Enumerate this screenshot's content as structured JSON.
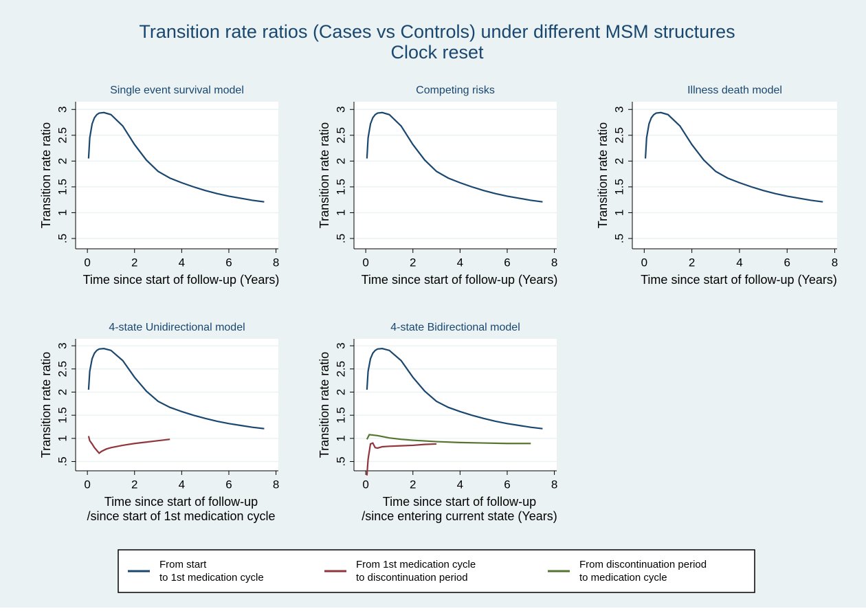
{
  "title": [
    "Transition rate ratios (Cases vs Controls) under different MSM structures",
    "Clock reset"
  ],
  "chart_data": [
    {
      "type": "line",
      "title": "Single event survival model",
      "xlabel": "Time since start of follow-up (Years)",
      "ylabel": "Transition rate ratio",
      "xlim": [
        -0.5,
        8.1
      ],
      "ylim": [
        0.3,
        3.15
      ],
      "xticks": [
        0,
        2,
        4,
        6,
        8
      ],
      "yticks": [
        {
          "value": 0.5,
          "label": ".5"
        },
        1,
        1.5,
        2,
        2.5,
        3
      ],
      "grid": true,
      "series": [
        {
          "color": "#1a476f",
          "x": [
            0.05,
            0.1,
            0.2,
            0.3,
            0.4,
            0.5,
            0.7,
            1,
            1.5,
            2,
            2.5,
            3,
            3.5,
            4,
            4.5,
            5,
            5.5,
            6,
            6.5,
            7,
            7.5
          ],
          "values": [
            2.05,
            2.45,
            2.72,
            2.84,
            2.9,
            2.93,
            2.94,
            2.9,
            2.68,
            2.32,
            2.02,
            1.8,
            1.67,
            1.58,
            1.5,
            1.43,
            1.37,
            1.32,
            1.28,
            1.24,
            1.21
          ]
        }
      ]
    },
    {
      "type": "line",
      "title": "Competing risks",
      "xlabel": "Time since start of follow-up (Years)",
      "ylabel": "Transition rate ratio",
      "xlim": [
        -0.5,
        8.1
      ],
      "ylim": [
        0.3,
        3.15
      ],
      "xticks": [
        0,
        2,
        4,
        6,
        8
      ],
      "yticks": [
        {
          "value": 0.5,
          "label": ".5"
        },
        1,
        1.5,
        2,
        2.5,
        3
      ],
      "grid": true,
      "series": [
        {
          "color": "#1a476f",
          "x": [
            0.05,
            0.1,
            0.2,
            0.3,
            0.4,
            0.5,
            0.7,
            1,
            1.5,
            2,
            2.5,
            3,
            3.5,
            4,
            4.5,
            5,
            5.5,
            6,
            6.5,
            7,
            7.5
          ],
          "values": [
            2.05,
            2.45,
            2.72,
            2.84,
            2.9,
            2.93,
            2.94,
            2.9,
            2.68,
            2.32,
            2.02,
            1.8,
            1.67,
            1.58,
            1.5,
            1.43,
            1.37,
            1.32,
            1.28,
            1.24,
            1.21
          ]
        }
      ]
    },
    {
      "type": "line",
      "title": "Illness death model",
      "xlabel": "Time since start of follow-up (Years)",
      "ylabel": "Transition rate ratio",
      "xlim": [
        -0.5,
        8.1
      ],
      "ylim": [
        0.3,
        3.15
      ],
      "xticks": [
        0,
        2,
        4,
        6,
        8
      ],
      "yticks": [
        {
          "value": 0.5,
          "label": ".5"
        },
        1,
        1.5,
        2,
        2.5,
        3
      ],
      "grid": true,
      "series": [
        {
          "color": "#1a476f",
          "x": [
            0.05,
            0.1,
            0.2,
            0.3,
            0.4,
            0.5,
            0.7,
            1,
            1.5,
            2,
            2.5,
            3,
            3.5,
            4,
            4.5,
            5,
            5.5,
            6,
            6.5,
            7,
            7.5
          ],
          "values": [
            2.05,
            2.45,
            2.72,
            2.84,
            2.9,
            2.93,
            2.94,
            2.9,
            2.68,
            2.32,
            2.02,
            1.8,
            1.67,
            1.58,
            1.5,
            1.43,
            1.37,
            1.32,
            1.28,
            1.24,
            1.21
          ]
        }
      ]
    },
    {
      "type": "line",
      "title": "4-state Unidirectional model",
      "xlabel": [
        "Time since start of follow-up",
        "/since start of 1st medication cycle"
      ],
      "ylabel": "Transition rate ratio",
      "xlim": [
        -0.5,
        8.1
      ],
      "ylim": [
        0.3,
        3.15
      ],
      "xticks": [
        0,
        2,
        4,
        6,
        8
      ],
      "yticks": [
        {
          "value": 0.5,
          "label": ".5"
        },
        1,
        1.5,
        2,
        2.5,
        3
      ],
      "grid": true,
      "series": [
        {
          "color": "#1a476f",
          "x": [
            0.05,
            0.1,
            0.2,
            0.3,
            0.4,
            0.5,
            0.7,
            1,
            1.5,
            2,
            2.5,
            3,
            3.5,
            4,
            4.5,
            5,
            5.5,
            6,
            6.5,
            7,
            7.5
          ],
          "values": [
            2.05,
            2.45,
            2.72,
            2.84,
            2.9,
            2.93,
            2.94,
            2.9,
            2.68,
            2.32,
            2.02,
            1.8,
            1.67,
            1.58,
            1.5,
            1.43,
            1.37,
            1.32,
            1.28,
            1.24,
            1.21
          ]
        },
        {
          "color": "#90353b",
          "x": [
            0.05,
            0.1,
            0.2,
            0.3,
            0.4,
            0.5,
            0.6,
            0.8,
            1,
            1.5,
            2,
            2.5,
            3,
            3.5
          ],
          "values": [
            1.05,
            0.95,
            0.88,
            0.8,
            0.74,
            0.68,
            0.72,
            0.77,
            0.8,
            0.85,
            0.89,
            0.92,
            0.95,
            0.98
          ]
        }
      ]
    },
    {
      "type": "line",
      "title": "4-state Bidirectional model",
      "xlabel": [
        "Time since start of follow-up",
        "/since entering current state (Years)"
      ],
      "ylabel": "Transition rate ratio",
      "xlim": [
        -0.5,
        8.1
      ],
      "ylim": [
        0.3,
        3.15
      ],
      "xticks": [
        0,
        2,
        4,
        6,
        8
      ],
      "yticks": [
        {
          "value": 0.5,
          "label": ".5"
        },
        1,
        1.5,
        2,
        2.5,
        3
      ],
      "grid": true,
      "series": [
        {
          "name": [
            "From start",
            "to 1st medication cycle"
          ],
          "color": "#1a476f",
          "x": [
            0.05,
            0.1,
            0.2,
            0.3,
            0.4,
            0.5,
            0.7,
            1,
            1.5,
            2,
            2.5,
            3,
            3.5,
            4,
            4.5,
            5,
            5.5,
            6,
            6.5,
            7,
            7.5
          ],
          "values": [
            2.05,
            2.45,
            2.72,
            2.84,
            2.9,
            2.93,
            2.94,
            2.9,
            2.68,
            2.32,
            2.02,
            1.8,
            1.67,
            1.58,
            1.5,
            1.43,
            1.37,
            1.32,
            1.28,
            1.24,
            1.21
          ]
        },
        {
          "name": [
            "From 1st medication cycle",
            "to discontinuation period"
          ],
          "color": "#90353b",
          "x": [
            0.05,
            0.1,
            0.2,
            0.3,
            0.4,
            0.5,
            0.7,
            1,
            1.5,
            2,
            2.5,
            3
          ],
          "values": [
            0.2,
            0.55,
            0.88,
            0.9,
            0.8,
            0.79,
            0.82,
            0.83,
            0.84,
            0.85,
            0.87,
            0.88
          ]
        },
        {
          "name": [
            "From discontinuation period",
            "to medication cycle"
          ],
          "color": "#55752f",
          "x": [
            0.05,
            0.15,
            0.5,
            1,
            1.5,
            2,
            3,
            4,
            5,
            6,
            7
          ],
          "values": [
            0.98,
            1.08,
            1.06,
            1.01,
            0.98,
            0.96,
            0.93,
            0.91,
            0.9,
            0.89,
            0.89
          ]
        }
      ]
    }
  ]
}
